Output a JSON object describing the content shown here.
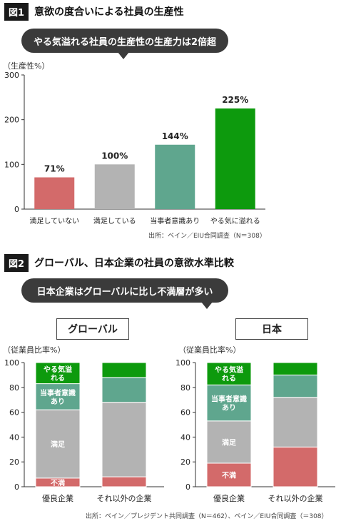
{
  "fig1": {
    "tag": "図1",
    "title": "意欲の度合いによる社員の生産性",
    "callout": "やる気溢れる社員の生産性の生産力は2倍超",
    "unit": "（生産性%）",
    "source": "出所：ベイン／EIU合同調査（N＝308）"
  },
  "fig2": {
    "tag": "図2",
    "title": "グローバル、日本企業の社員の意欲水準比較",
    "callout": "日本企業はグローバルに比し不満層が多い",
    "left_label": "グローバル",
    "right_label": "日本",
    "unit": "（従業員比率%）",
    "source": "出所：ベイン／プレジデント共同調査（N＝462）、ベイン／EIU合同調査（＝308）"
  },
  "chart_data": [
    {
      "type": "bar",
      "categories": [
        "満足していない",
        "満足している",
        "当事者意識あり",
        "やる気に溢れる"
      ],
      "values": [
        71,
        100,
        144,
        225
      ],
      "value_labels": [
        "71%",
        "100%",
        "144%",
        "225%"
      ],
      "colors": [
        "#d36a6a",
        "#b3b3b3",
        "#5fa68e",
        "#0d9a0d"
      ],
      "ylim": [
        0,
        300
      ],
      "yticks": [
        0,
        100,
        200,
        300
      ],
      "ylabel": "（生産性%）"
    },
    {
      "type": "bar",
      "stacked": true,
      "panel": "グローバル",
      "categories": [
        "優良企業",
        "それ以外の企業"
      ],
      "series": [
        {
          "name": "不満",
          "values": [
            7,
            8
          ],
          "color": "#d36a6a"
        },
        {
          "name": "満足",
          "values": [
            55,
            60
          ],
          "color": "#b3b3b3"
        },
        {
          "name": "当事者意識あり",
          "values": [
            21,
            20
          ],
          "color": "#5fa68e"
        },
        {
          "name": "やる気溢れる",
          "values": [
            17,
            12
          ],
          "color": "#0d9a0d"
        }
      ],
      "segment_labels": [
        [
          "不満",
          "満足",
          "当事者意識\nあり",
          "やる気溢\nれる"
        ],
        [
          "",
          "",
          "",
          ""
        ]
      ],
      "ylim": [
        0,
        100
      ],
      "yticks": [
        0,
        20,
        40,
        60,
        80,
        100
      ],
      "ylabel": "（従業員比率%）"
    },
    {
      "type": "bar",
      "stacked": true,
      "panel": "日本",
      "categories": [
        "優良企業",
        "それ以外の企業"
      ],
      "series": [
        {
          "name": "不満",
          "values": [
            19,
            32
          ],
          "color": "#d36a6a"
        },
        {
          "name": "満足",
          "values": [
            34,
            40
          ],
          "color": "#b3b3b3"
        },
        {
          "name": "当事者意識あり",
          "values": [
            29,
            18
          ],
          "color": "#5fa68e"
        },
        {
          "name": "やる気溢れる",
          "values": [
            18,
            10
          ],
          "color": "#0d9a0d"
        }
      ],
      "segment_labels": [
        [
          "不満",
          "満足",
          "当事者意識\nあり",
          "やる気溢\nれる"
        ],
        [
          "",
          "",
          "",
          ""
        ]
      ],
      "ylim": [
        0,
        100
      ],
      "yticks": [
        0,
        20,
        40,
        60,
        80,
        100
      ],
      "ylabel": "（従業員比率%）"
    }
  ]
}
